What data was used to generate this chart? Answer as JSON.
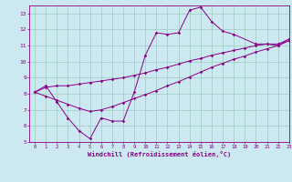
{
  "xlabel": "Windchill (Refroidissement éolien,°C)",
  "bg_color": "#cce8f0",
  "line_color": "#880088",
  "grid_color": "#99ccbb",
  "x_data": [
    0,
    1,
    2,
    3,
    4,
    5,
    6,
    7,
    8,
    9,
    10,
    11,
    12,
    13,
    14,
    15,
    16,
    17,
    18,
    19,
    20,
    21,
    22,
    23
  ],
  "y_main": [
    8.1,
    8.5,
    7.5,
    6.5,
    5.7,
    5.2,
    6.5,
    6.3,
    6.3,
    8.1,
    10.4,
    11.8,
    11.7,
    11.8,
    13.2,
    13.4,
    12.5,
    11.9,
    11.7,
    null,
    11.1,
    11.1,
    11.0,
    11.4
  ],
  "y_upper": [
    8.1,
    8.4,
    8.5,
    8.5,
    8.6,
    8.7,
    8.8,
    8.9,
    9.0,
    9.15,
    9.3,
    9.5,
    9.65,
    9.85,
    10.05,
    10.2,
    10.4,
    10.55,
    10.7,
    10.85,
    11.0,
    11.1,
    11.1,
    11.4
  ],
  "y_lower": [
    8.1,
    7.85,
    7.6,
    7.35,
    7.1,
    6.9,
    7.0,
    7.2,
    7.45,
    7.7,
    7.95,
    8.2,
    8.5,
    8.75,
    9.05,
    9.35,
    9.65,
    9.9,
    10.15,
    10.35,
    10.6,
    10.8,
    11.0,
    11.3
  ],
  "ylim": [
    5,
    13.5
  ],
  "xlim": [
    -0.5,
    23
  ],
  "yticks": [
    5,
    6,
    7,
    8,
    9,
    10,
    11,
    12,
    13
  ],
  "xticks": [
    0,
    1,
    2,
    3,
    4,
    5,
    6,
    7,
    8,
    9,
    10,
    11,
    12,
    13,
    14,
    15,
    16,
    17,
    18,
    19,
    20,
    21,
    22,
    23
  ]
}
